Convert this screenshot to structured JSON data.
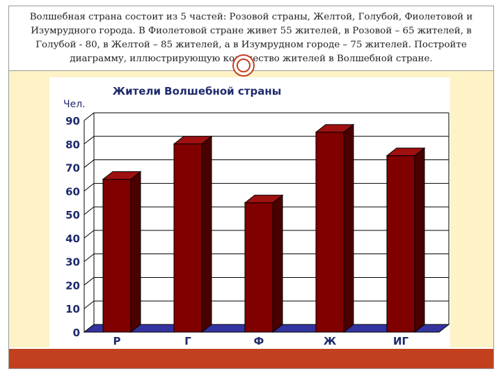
{
  "problem": {
    "text": "Волшебная страна состоит из 5 частей: Розовой страны, Желтой, Голубой, Фиолетовой и Изумрудного города. В Фиолетовой стране живет 55 жителей, в Розовой – 65 жителей, в Голубой - 80, в Желтой – 85 жителей, а в Изумрудном городе – 75 жителей. Постройте диаграмму, иллюстрирующую количество жителей в Волшебной стране."
  },
  "colors": {
    "panel": "#fdf3c6",
    "accent": "#c2401e",
    "bar_front": "#800000",
    "bar_side": "#4a0000",
    "bar_top": "#a01010",
    "axis_text": "#1f2a6b",
    "floor": "#3333a0"
  },
  "chart_data": {
    "type": "bar",
    "title": "Жители Волшебной страны",
    "ylabel": "Чел.",
    "xlabel": "",
    "categories": [
      "Р",
      "Г",
      "Ф",
      "Ж",
      "ИГ"
    ],
    "values": [
      65,
      80,
      55,
      85,
      75
    ],
    "ylim": [
      0,
      90
    ],
    "yticks": [
      0,
      10,
      20,
      30,
      40,
      50,
      60,
      70,
      80,
      90
    ],
    "grid": true,
    "style": "3d-column"
  }
}
